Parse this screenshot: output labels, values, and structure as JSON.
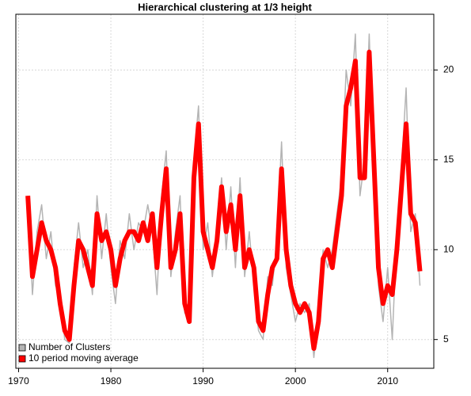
{
  "chart_data": {
    "type": "line",
    "title": "Hierarchical clustering at 1/3 height",
    "x": [
      1971,
      1971.5,
      1972,
      1972.5,
      1973,
      1973.5,
      1974,
      1974.5,
      1975,
      1975.5,
      1976,
      1976.5,
      1977,
      1977.5,
      1978,
      1978.5,
      1979,
      1979.5,
      1980,
      1980.5,
      1981,
      1981.5,
      1982,
      1982.5,
      1983,
      1983.5,
      1984,
      1984.5,
      1985,
      1985.5,
      1986,
      1986.5,
      1987,
      1987.5,
      1988,
      1988.5,
      1989,
      1989.5,
      1990,
      1990.5,
      1991,
      1991.5,
      1992,
      1992.5,
      1993,
      1993.5,
      1994,
      1994.5,
      1995,
      1995.5,
      1996,
      1996.5,
      1997,
      1997.5,
      1998,
      1998.5,
      1999,
      1999.5,
      2000,
      2000.5,
      2001,
      2001.5,
      2002,
      2002.5,
      2003,
      2003.5,
      2004,
      2004.5,
      2005,
      2005.5,
      2006,
      2006.5,
      2007,
      2007.5,
      2008,
      2008.5,
      2009,
      2009.5,
      2010,
      2010.5,
      2011,
      2011.5,
      2012,
      2012.5,
      2013,
      2013.5
    ],
    "series": [
      {
        "name": "Number of Clusters",
        "color": "#b4b4b4",
        "width": 1.5,
        "values": [
          13,
          7.5,
          11,
          12.5,
          9.5,
          11,
          8,
          7.5,
          5,
          4.8,
          9,
          11.5,
          9,
          10,
          7.5,
          13,
          9.5,
          12,
          9,
          7,
          10.5,
          9.5,
          12,
          10,
          11.5,
          11,
          12.5,
          11,
          7.5,
          13,
          15.5,
          8.5,
          11,
          13,
          6.5,
          6,
          15,
          18,
          10,
          11.5,
          8.5,
          11,
          14,
          10,
          13.5,
          9,
          14,
          8.5,
          11,
          8,
          5.5,
          5,
          8.5,
          8,
          10.5,
          16,
          9,
          7.5,
          6,
          7,
          6.5,
          7,
          4,
          6.5,
          10,
          9,
          10,
          12,
          14,
          20,
          18,
          22,
          13,
          15,
          22,
          14,
          8,
          6,
          9,
          5,
          11,
          14.5,
          19,
          11,
          12,
          8
        ]
      },
      {
        "name": "10 period moving average",
        "color": "#ff0000",
        "width": 6,
        "values": [
          13,
          8.5,
          10,
          11.5,
          10.5,
          10,
          9,
          7,
          5.5,
          5,
          8,
          10.5,
          10,
          9,
          8,
          12,
          10.5,
          11,
          10,
          8,
          9.5,
          10.5,
          11,
          11,
          10.5,
          11.5,
          10.5,
          12,
          9,
          12,
          14.5,
          9,
          10,
          12,
          7,
          6,
          14,
          17,
          11,
          10,
          9,
          10.5,
          13.5,
          11,
          12.5,
          10,
          13,
          9,
          10,
          9,
          6,
          5.5,
          7.5,
          9,
          9.5,
          14.5,
          10,
          8,
          7,
          6.5,
          7,
          6.5,
          4.5,
          6,
          9.5,
          10,
          9,
          11,
          13,
          18,
          19,
          20.5,
          14,
          14,
          21,
          15,
          9,
          7,
          8,
          7.5,
          10,
          13.5,
          17,
          12,
          11.5,
          8.8
        ]
      }
    ],
    "xlim": [
      1969.7,
      2015
    ],
    "xticks": [
      1970,
      1980,
      1990,
      2000,
      2010
    ],
    "ylim": [
      3.4,
      23.1
    ],
    "yticks": [
      5,
      10,
      15,
      20
    ],
    "grid": true,
    "legend": "bottom-left"
  }
}
